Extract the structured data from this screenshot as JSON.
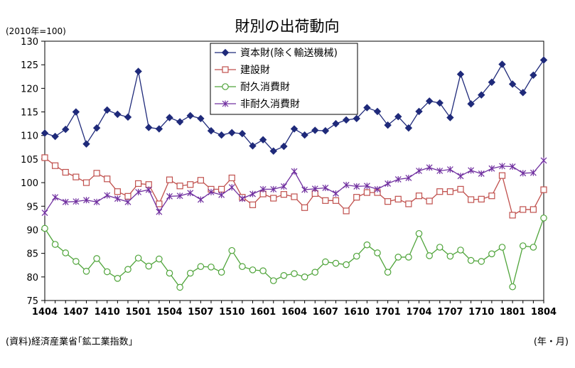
{
  "chart_data": {
    "type": "line",
    "title": "財別の出荷動向",
    "unit_label": "(2010年=100)",
    "source_note": "(資料)経済産業省｢鉱工業指数｣",
    "xlabel": "(年・月)",
    "ylim": [
      75,
      130
    ],
    "yticks": [
      75,
      80,
      85,
      90,
      95,
      100,
      105,
      110,
      115,
      120,
      125,
      130
    ],
    "grid": false,
    "legend_position": "top-center",
    "xtick_labels": [
      "1404",
      "1407",
      "1410",
      "1501",
      "1504",
      "1507",
      "1510",
      "1601",
      "1604",
      "1607",
      "1610",
      "1701",
      "1704",
      "1707",
      "1710",
      "1801",
      "1804"
    ],
    "x": [
      "1404",
      "1405",
      "1406",
      "1407",
      "1408",
      "1409",
      "1410",
      "1411",
      "1412",
      "1501",
      "1502",
      "1503",
      "1504",
      "1505",
      "1506",
      "1507",
      "1508",
      "1509",
      "1510",
      "1511",
      "1512",
      "1601",
      "1602",
      "1603",
      "1604",
      "1605",
      "1606",
      "1607",
      "1608",
      "1609",
      "1610",
      "1611",
      "1612",
      "1701",
      "1702",
      "1703",
      "1704",
      "1705",
      "1706",
      "1707",
      "1708",
      "1709",
      "1710",
      "1711",
      "1712",
      "1801",
      "1802",
      "1803",
      "1804"
    ],
    "series": [
      {
        "name": "資本財(除く輸送機械)",
        "color": "#1f2a7a",
        "marker": "diamond",
        "values": [
          110.5,
          109.8,
          111.3,
          115.0,
          108.2,
          111.6,
          115.4,
          114.5,
          113.9,
          123.6,
          111.7,
          111.4,
          113.8,
          112.9,
          114.2,
          113.6,
          111.0,
          110.1,
          110.6,
          110.4,
          107.8,
          109.1,
          106.7,
          107.7,
          111.4,
          110.1,
          111.1,
          111.0,
          112.5,
          113.3,
          113.6,
          115.9,
          115.1,
          112.2,
          114.0,
          111.6,
          115.1,
          117.3,
          116.9,
          113.8,
          123.0,
          116.7,
          118.6,
          121.3,
          125.1,
          120.9,
          119.1,
          122.8,
          126.0
        ]
      },
      {
        "name": "建設財",
        "color": "#c0504d",
        "marker": "square",
        "values": [
          105.3,
          103.6,
          102.2,
          101.2,
          100.0,
          102.0,
          100.8,
          98.1,
          97.1,
          99.8,
          99.6,
          95.5,
          100.6,
          99.3,
          99.6,
          100.5,
          98.6,
          98.6,
          101.0,
          96.9,
          95.3,
          97.6,
          96.7,
          97.5,
          97.0,
          94.7,
          97.7,
          96.2,
          96.2,
          94.0,
          96.9,
          97.9,
          97.9,
          96.0,
          96.5,
          95.5,
          97.2,
          96.1,
          98.1,
          98.1,
          98.6,
          96.4,
          96.5,
          97.2,
          101.5,
          93.1,
          94.3,
          94.3,
          98.5
        ]
      },
      {
        "name": "耐久消費財",
        "color": "#4fa43a",
        "marker": "circle",
        "values": [
          90.3,
          86.9,
          85.1,
          83.3,
          81.2,
          83.9,
          81.1,
          79.7,
          81.6,
          84.0,
          82.3,
          83.8,
          80.8,
          77.8,
          80.8,
          82.2,
          82.1,
          81.0,
          85.6,
          82.2,
          81.5,
          81.3,
          79.2,
          80.3,
          80.7,
          80.0,
          81.0,
          83.2,
          82.9,
          82.6,
          84.4,
          86.8,
          85.1,
          81.0,
          84.2,
          84.2,
          89.2,
          84.5,
          86.3,
          84.4,
          85.7,
          83.5,
          83.3,
          84.9,
          86.3,
          77.9,
          86.6,
          86.3,
          92.5
        ]
      },
      {
        "name": "非耐久消費財",
        "color": "#7030a0",
        "marker": "x",
        "values": [
          93.6,
          96.9,
          95.9,
          96.0,
          96.3,
          95.9,
          97.3,
          96.6,
          95.9,
          98.0,
          98.5,
          93.8,
          97.1,
          97.2,
          97.8,
          96.4,
          98.0,
          97.4,
          99.0,
          96.6,
          97.6,
          98.6,
          98.6,
          99.2,
          102.4,
          98.5,
          98.7,
          98.9,
          97.7,
          99.5,
          99.2,
          99.3,
          98.6,
          99.8,
          100.7,
          101.0,
          102.5,
          103.2,
          102.5,
          102.8,
          101.4,
          102.6,
          101.9,
          103.0,
          103.5,
          103.4,
          102.0,
          102.1,
          104.7
        ]
      }
    ]
  }
}
